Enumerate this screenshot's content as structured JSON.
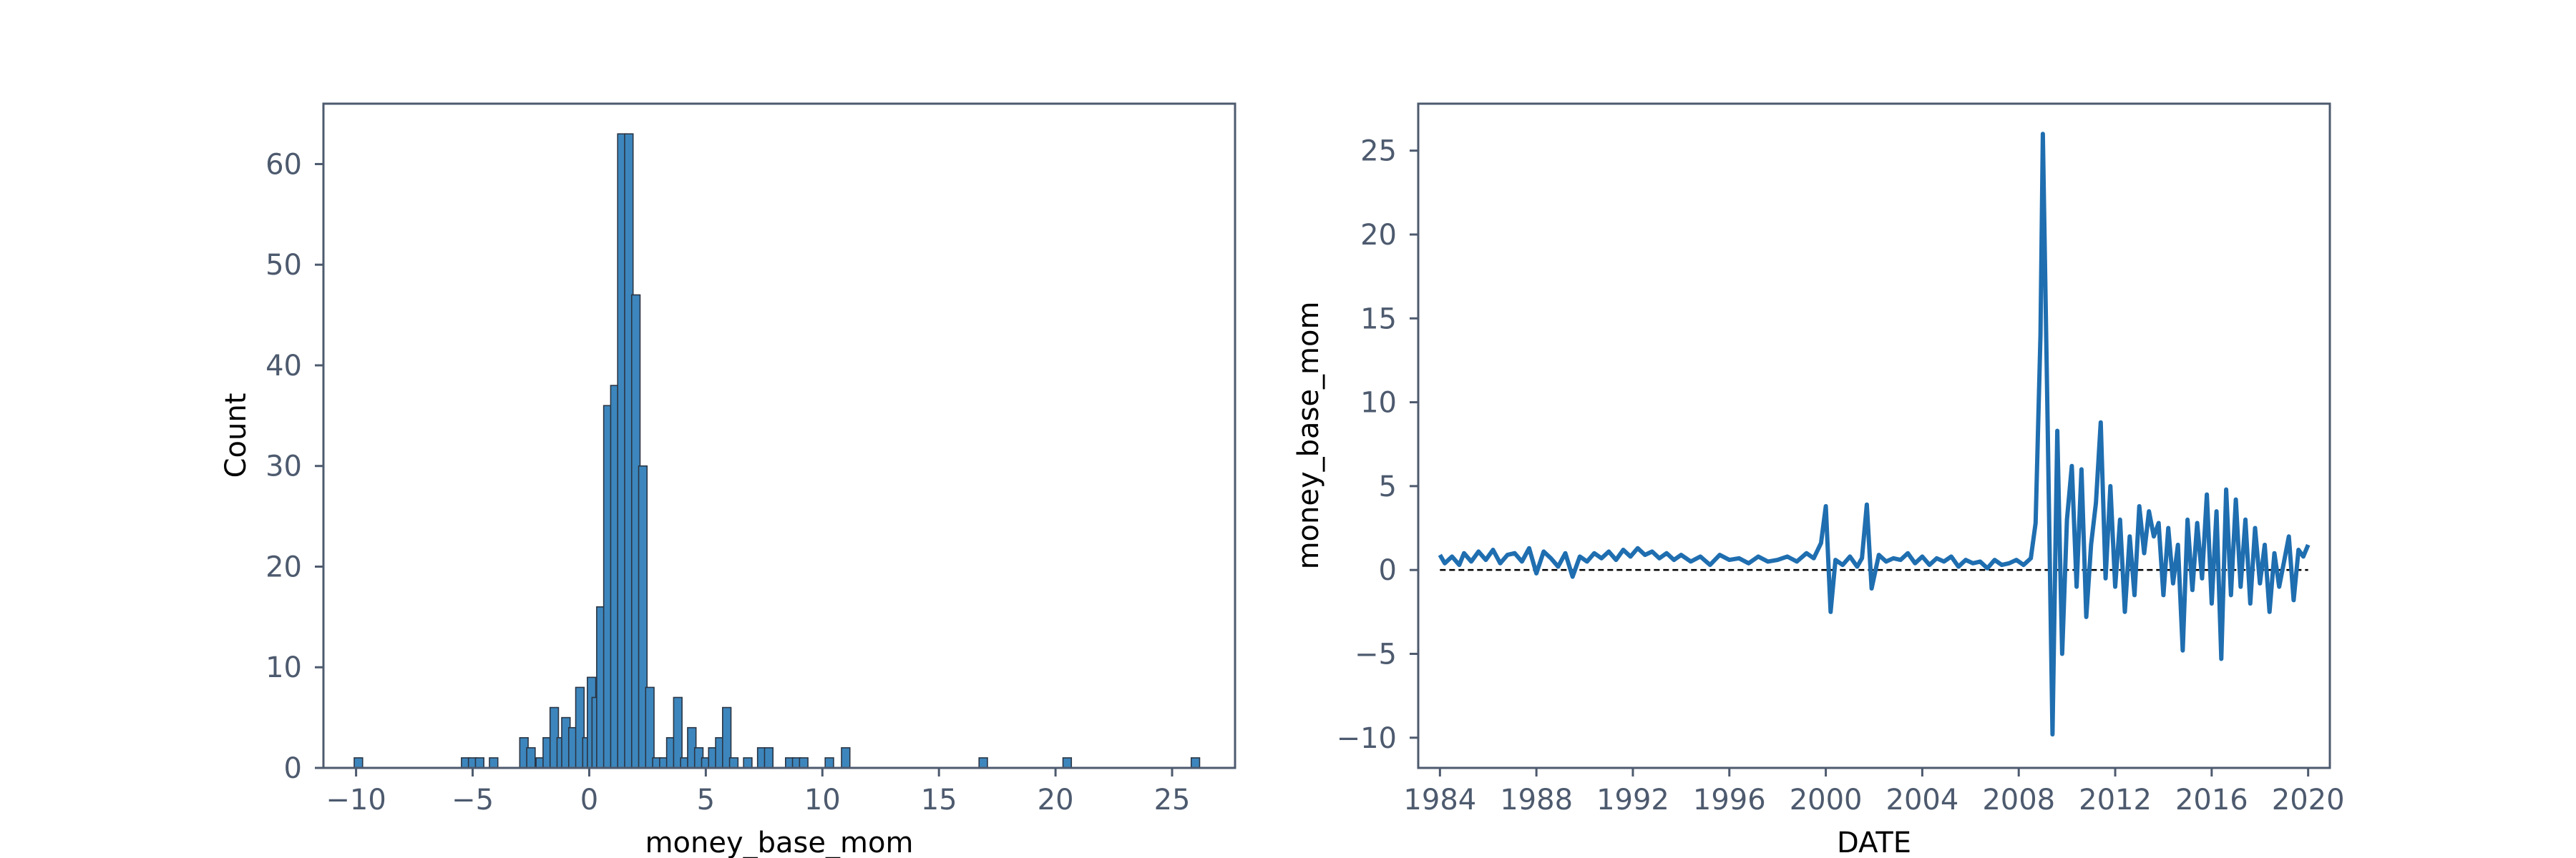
{
  "chart_data": [
    {
      "type": "bar",
      "subtype": "histogram",
      "title": "",
      "xlabel": "money_base_mom",
      "ylabel": "Count",
      "xlim": [
        -11.4,
        27.7
      ],
      "ylim": [
        0,
        66
      ],
      "xticks": [
        "−10",
        "−5",
        "0",
        "5",
        "10",
        "15",
        "20",
        "25"
      ],
      "yticks": [
        "0",
        "10",
        "20",
        "30",
        "40",
        "50",
        "60"
      ],
      "bin_width": 0.36,
      "bar_color": "#3d86bd",
      "edge_color": "#2b3544",
      "bins": [
        {
          "x": -9.9,
          "count": 1
        },
        {
          "x": -5.3,
          "count": 1
        },
        {
          "x": -5.0,
          "count": 1
        },
        {
          "x": -4.7,
          "count": 1
        },
        {
          "x": -4.1,
          "count": 1
        },
        {
          "x": -2.8,
          "count": 3
        },
        {
          "x": -2.5,
          "count": 2
        },
        {
          "x": -2.1,
          "count": 1
        },
        {
          "x": -1.8,
          "count": 3
        },
        {
          "x": -1.5,
          "count": 6
        },
        {
          "x": -1.2,
          "count": 3
        },
        {
          "x": -1.0,
          "count": 5
        },
        {
          "x": -0.7,
          "count": 4
        },
        {
          "x": -0.4,
          "count": 8
        },
        {
          "x": -0.1,
          "count": 3
        },
        {
          "x": 0.1,
          "count": 9
        },
        {
          "x": 0.3,
          "count": 7
        },
        {
          "x": 0.5,
          "count": 16
        },
        {
          "x": 0.8,
          "count": 36
        },
        {
          "x": 1.1,
          "count": 38
        },
        {
          "x": 1.4,
          "count": 63
        },
        {
          "x": 1.7,
          "count": 63
        },
        {
          "x": 2.0,
          "count": 47
        },
        {
          "x": 2.3,
          "count": 30
        },
        {
          "x": 2.6,
          "count": 8
        },
        {
          "x": 2.9,
          "count": 1
        },
        {
          "x": 3.2,
          "count": 1
        },
        {
          "x": 3.5,
          "count": 3
        },
        {
          "x": 3.8,
          "count": 7
        },
        {
          "x": 4.1,
          "count": 1
        },
        {
          "x": 4.4,
          "count": 4
        },
        {
          "x": 4.7,
          "count": 2
        },
        {
          "x": 5.0,
          "count": 1
        },
        {
          "x": 5.3,
          "count": 2
        },
        {
          "x": 5.6,
          "count": 3
        },
        {
          "x": 5.9,
          "count": 6
        },
        {
          "x": 6.2,
          "count": 1
        },
        {
          "x": 6.8,
          "count": 1
        },
        {
          "x": 7.4,
          "count": 2
        },
        {
          "x": 7.7,
          "count": 2
        },
        {
          "x": 8.6,
          "count": 1
        },
        {
          "x": 8.9,
          "count": 1
        },
        {
          "x": 9.2,
          "count": 1
        },
        {
          "x": 10.3,
          "count": 1
        },
        {
          "x": 11.0,
          "count": 2
        },
        {
          "x": 16.9,
          "count": 1
        },
        {
          "x": 20.5,
          "count": 1
        },
        {
          "x": 26.0,
          "count": 1
        }
      ]
    },
    {
      "type": "line",
      "title": "",
      "xlabel": "DATE",
      "ylabel": "money_base_mom",
      "xlim": [
        1983.1,
        2020.9
      ],
      "ylim": [
        -11.8,
        27.8
      ],
      "xticks": [
        "1984",
        "1988",
        "1992",
        "1996",
        "2000",
        "2004",
        "2008",
        "2012",
        "2016",
        "2020"
      ],
      "yticks": [
        "−10",
        "−5",
        "0",
        "5",
        "10",
        "15",
        "20",
        "25"
      ],
      "line_color": "#1f6eb0",
      "zero_line_color": "#000000",
      "x": [
        1984.0,
        1984.2,
        1984.5,
        1984.8,
        1985.0,
        1985.3,
        1985.6,
        1985.9,
        1986.2,
        1986.5,
        1986.8,
        1987.1,
        1987.4,
        1987.7,
        1988.0,
        1988.3,
        1988.6,
        1988.9,
        1989.2,
        1989.5,
        1989.8,
        1990.1,
        1990.4,
        1990.7,
        1991.0,
        1991.3,
        1991.6,
        1991.9,
        1992.2,
        1992.5,
        1992.8,
        1993.1,
        1993.4,
        1993.7,
        1994.0,
        1994.4,
        1994.8,
        1995.2,
        1995.6,
        1996.0,
        1996.4,
        1996.8,
        1997.2,
        1997.6,
        1998.0,
        1998.4,
        1998.8,
        1999.2,
        1999.5,
        1999.8,
        2000.0,
        2000.2,
        2000.4,
        2000.7,
        2001.0,
        2001.3,
        2001.5,
        2001.7,
        2001.9,
        2002.2,
        2002.5,
        2002.8,
        2003.1,
        2003.4,
        2003.7,
        2004.0,
        2004.3,
        2004.6,
        2004.9,
        2005.2,
        2005.5,
        2005.8,
        2006.1,
        2006.4,
        2006.7,
        2007.0,
        2007.3,
        2007.6,
        2007.9,
        2008.2,
        2008.5,
        2008.7,
        2008.9,
        2009.0,
        2009.2,
        2009.4,
        2009.6,
        2009.8,
        2010.0,
        2010.2,
        2010.4,
        2010.6,
        2010.8,
        2011.0,
        2011.2,
        2011.4,
        2011.6,
        2011.8,
        2012.0,
        2012.2,
        2012.4,
        2012.6,
        2012.8,
        2013.0,
        2013.2,
        2013.4,
        2013.6,
        2013.8,
        2014.0,
        2014.2,
        2014.4,
        2014.6,
        2014.8,
        2015.0,
        2015.2,
        2015.4,
        2015.6,
        2015.8,
        2016.0,
        2016.2,
        2016.4,
        2016.6,
        2016.8,
        2017.0,
        2017.2,
        2017.4,
        2017.6,
        2017.8,
        2018.0,
        2018.2,
        2018.4,
        2018.6,
        2018.8,
        2019.0,
        2019.2,
        2019.4,
        2019.6,
        2019.8,
        2020.0
      ],
      "y": [
        0.9,
        0.4,
        0.8,
        0.3,
        1.0,
        0.5,
        1.1,
        0.6,
        1.2,
        0.4,
        0.9,
        1.0,
        0.5,
        1.3,
        -0.2,
        1.1,
        0.7,
        0.2,
        1.0,
        -0.4,
        0.8,
        0.5,
        1.0,
        0.7,
        1.1,
        0.6,
        1.2,
        0.8,
        1.3,
        0.9,
        1.1,
        0.7,
        1.0,
        0.6,
        0.9,
        0.5,
        0.8,
        0.3,
        0.9,
        0.6,
        0.7,
        0.4,
        0.8,
        0.5,
        0.6,
        0.8,
        0.5,
        1.0,
        0.7,
        1.6,
        3.8,
        -2.5,
        0.6,
        0.3,
        0.8,
        0.2,
        0.7,
        3.9,
        -1.1,
        0.9,
        0.5,
        0.7,
        0.6,
        1.0,
        0.4,
        0.8,
        0.3,
        0.7,
        0.5,
        0.8,
        0.2,
        0.6,
        0.4,
        0.5,
        0.1,
        0.6,
        0.3,
        0.4,
        0.6,
        0.3,
        0.7,
        2.8,
        14.0,
        26.0,
        8.5,
        -9.8,
        8.3,
        -5.0,
        3.0,
        6.2,
        -1.0,
        6.0,
        -2.8,
        1.5,
        4.0,
        8.8,
        -0.5,
        5.0,
        -1.0,
        3.0,
        -2.5,
        2.0,
        -1.5,
        3.8,
        1.0,
        3.5,
        2.0,
        2.8,
        -1.5,
        2.5,
        -0.8,
        1.5,
        -4.8,
        3.0,
        -1.2,
        2.8,
        -0.5,
        4.5,
        -2.0,
        3.5,
        -5.3,
        4.8,
        -1.5,
        4.2,
        -1.0,
        3.0,
        -2.0,
        2.5,
        -0.8,
        1.5,
        -2.5,
        1.0,
        -1.0,
        0.5,
        2.0,
        -1.8,
        1.2,
        0.8,
        1.5
      ]
    }
  ]
}
